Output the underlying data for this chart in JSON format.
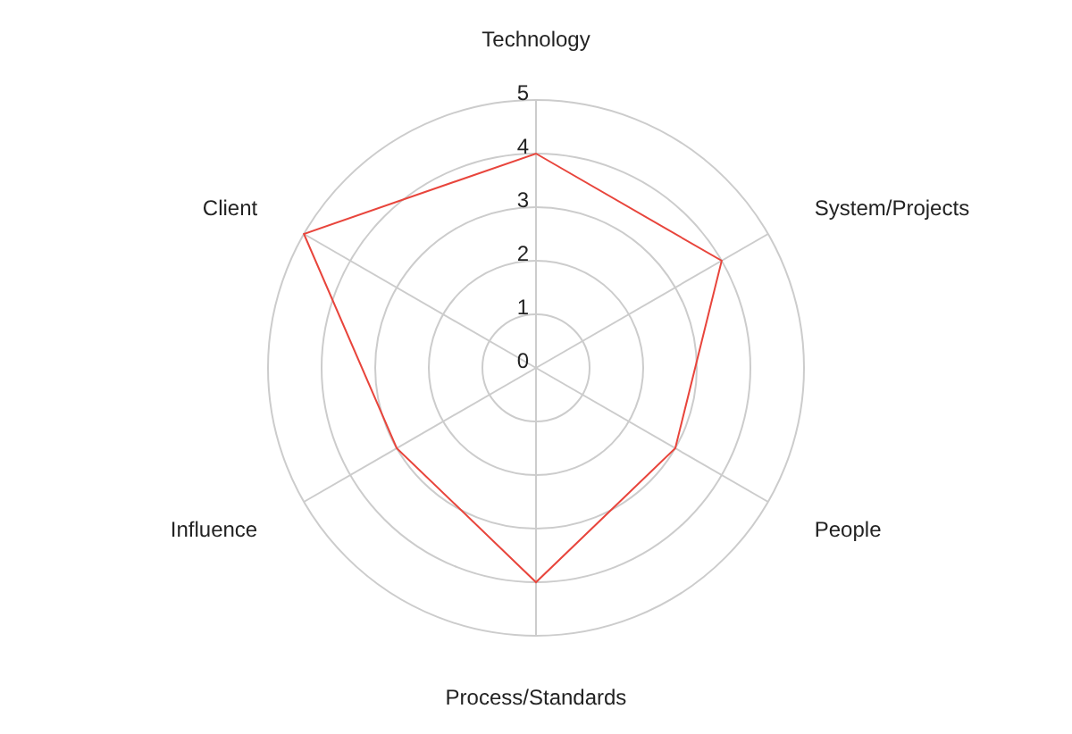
{
  "chart_data": {
    "type": "radar",
    "categories": [
      "Technology",
      "System/Projects",
      "People",
      "Process/Standards",
      "Influence",
      "Client"
    ],
    "series": [
      {
        "color": "#e8453c",
        "values": [
          4,
          4,
          3,
          4,
          3,
          5
        ]
      }
    ],
    "ylim": [
      0,
      5
    ],
    "yticks": [
      0,
      1,
      2,
      3,
      4,
      5
    ],
    "grid": true,
    "marker": "none"
  }
}
